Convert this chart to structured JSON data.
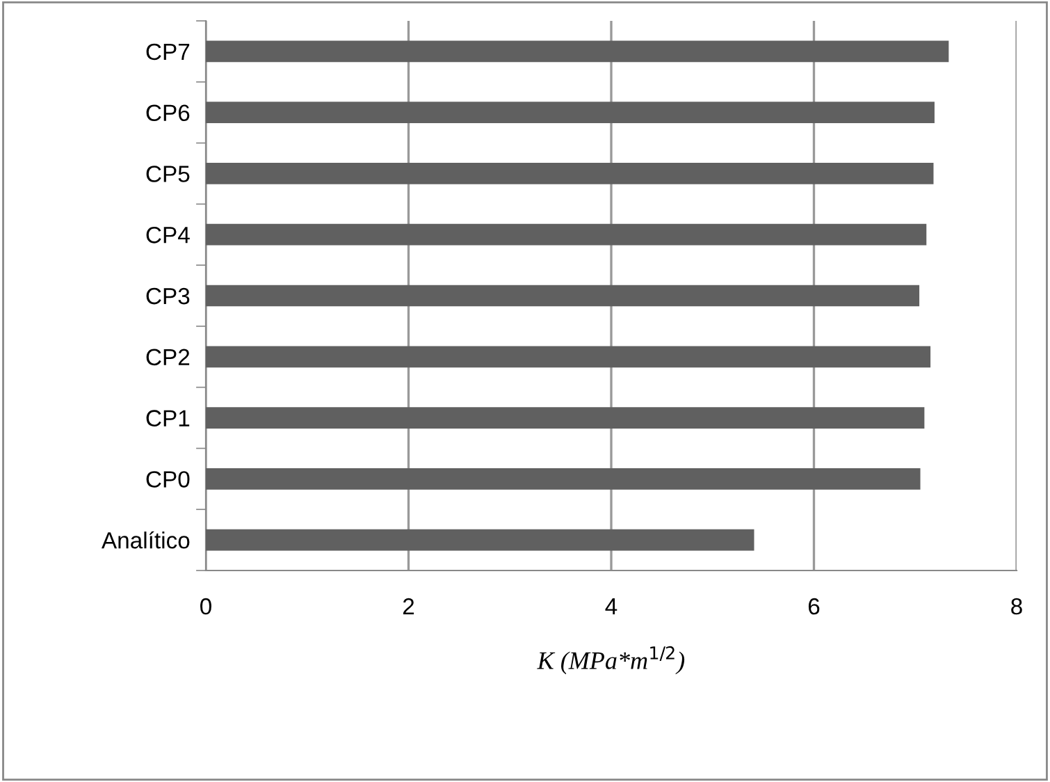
{
  "chart_data": {
    "type": "bar",
    "orientation": "horizontal",
    "xlabel": "K (MPa*m$^{1/2}$)",
    "categories": [
      "CP7",
      "CP6",
      "CP5",
      "CP4",
      "CP3",
      "CP2",
      "CP1",
      "CP0",
      "Analítico"
    ],
    "values": [
      7.33,
      7.19,
      7.18,
      7.11,
      7.04,
      7.15,
      7.09,
      7.05,
      5.41
    ],
    "color": "#606060",
    "xlim": [
      0,
      8
    ],
    "xticks": [
      0,
      2,
      4,
      6,
      8
    ],
    "grid": "x"
  }
}
